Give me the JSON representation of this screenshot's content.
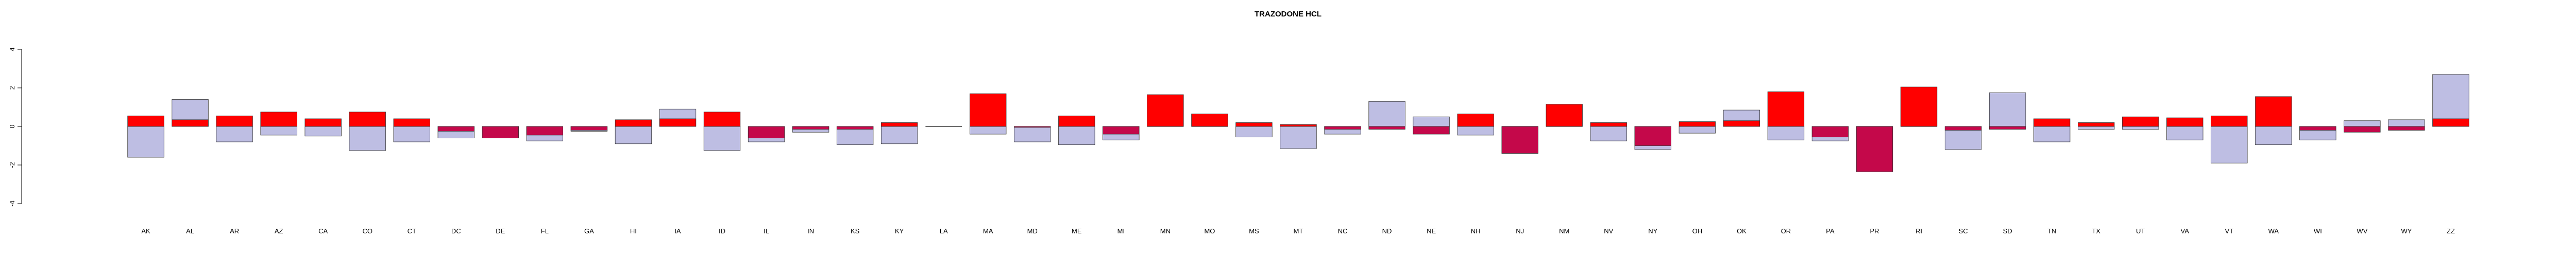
{
  "chart_data": {
    "type": "bar",
    "title": "TRAZODONE HCL",
    "xlabel": "",
    "ylabel": "",
    "ylim": [
      -4,
      4
    ],
    "yticks": [
      -4,
      -2,
      0,
      2,
      4
    ],
    "grid": false,
    "categories": [
      "AK",
      "AL",
      "AR",
      "AZ",
      "CA",
      "CO",
      "CT",
      "DC",
      "DE",
      "FL",
      "GA",
      "HI",
      "IA",
      "ID",
      "IL",
      "IN",
      "KS",
      "KY",
      "LA",
      "MA",
      "MD",
      "ME",
      "MI",
      "MN",
      "MO",
      "MS",
      "MT",
      "NC",
      "ND",
      "NE",
      "NH",
      "NJ",
      "NM",
      "NV",
      "NY",
      "OH",
      "OK",
      "OR",
      "PA",
      "PR",
      "RI",
      "SC",
      "SD",
      "TN",
      "TX",
      "UT",
      "VA",
      "VT",
      "WA",
      "WI",
      "WV",
      "WY",
      "ZZ"
    ],
    "series": [
      {
        "values": [
          -1.6,
          1.4,
          -0.8,
          -0.45,
          -0.5,
          -1.25,
          -0.8,
          -0.6,
          -0.3,
          -0.75,
          -0.25,
          -0.9,
          0.9,
          -1.25,
          -0.8,
          -0.3,
          -0.95,
          -0.9,
          0.0,
          -0.4,
          -0.8,
          -0.95,
          -0.7,
          0.0,
          0.0,
          -0.55,
          -1.15,
          -0.4,
          1.3,
          0.5,
          -0.45,
          0.0,
          0.0,
          -0.75,
          -1.2,
          -0.35,
          0.85,
          -0.7,
          -0.75,
          0.0,
          0.0,
          -1.2,
          1.75,
          -0.8,
          -0.15,
          -0.15,
          -0.7,
          -1.9,
          -0.95,
          -0.7,
          0.3,
          0.35,
          2.7
        ]
      },
      {
        "values": [
          0.55,
          0.35,
          0.55,
          0.75,
          0.4,
          0.75,
          0.4,
          -0.25,
          -0.6,
          -0.45,
          -0.2,
          0.35,
          0.4,
          0.75,
          -0.6,
          -0.15,
          -0.15,
          0.2,
          0.0,
          1.7,
          -0.05,
          0.55,
          -0.4,
          1.65,
          0.65,
          0.2,
          0.1,
          -0.15,
          -0.15,
          -0.4,
          0.65,
          -1.4,
          1.15,
          0.2,
          -1.0,
          0.25,
          0.3,
          1.8,
          -0.55,
          -2.35,
          2.05,
          -0.2,
          -0.15,
          0.4,
          0.2,
          0.5,
          0.45,
          0.55,
          1.55,
          -0.2,
          -0.3,
          -0.2,
          0.4
        ]
      }
    ],
    "colors": {
      "series1": "#bebee3",
      "series2_positive": "#ff0000",
      "series2_negative": "#c4084a",
      "outline": "#333333",
      "axis": "#000000"
    }
  }
}
